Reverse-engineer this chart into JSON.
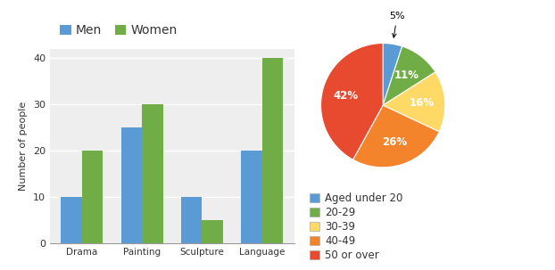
{
  "bar_categories": [
    "Drama",
    "Painting",
    "Sculpture",
    "Language"
  ],
  "men_values": [
    10,
    25,
    10,
    20
  ],
  "women_values": [
    20,
    30,
    5,
    40
  ],
  "bar_ylabel": "Number of people",
  "bar_ylim": [
    0,
    42
  ],
  "bar_yticks": [
    0,
    10,
    20,
    30,
    40
  ],
  "men_color": "#5B9BD5",
  "women_color": "#70AD47",
  "bar_legend_labels": [
    "Men",
    "Women"
  ],
  "pie_values": [
    5,
    11,
    16,
    26,
    42
  ],
  "pie_labels": [
    "5%",
    "11%",
    "16%",
    "26%",
    "42%"
  ],
  "pie_colors": [
    "#5B9BD5",
    "#70AD47",
    "#FFD966",
    "#F4842C",
    "#E84A2F"
  ],
  "pie_legend_labels": [
    "Aged under 20",
    "20-29",
    "30-39",
    "40-49",
    "50 or over"
  ],
  "pie_startangle": 90,
  "background_color": "#eeeeee"
}
